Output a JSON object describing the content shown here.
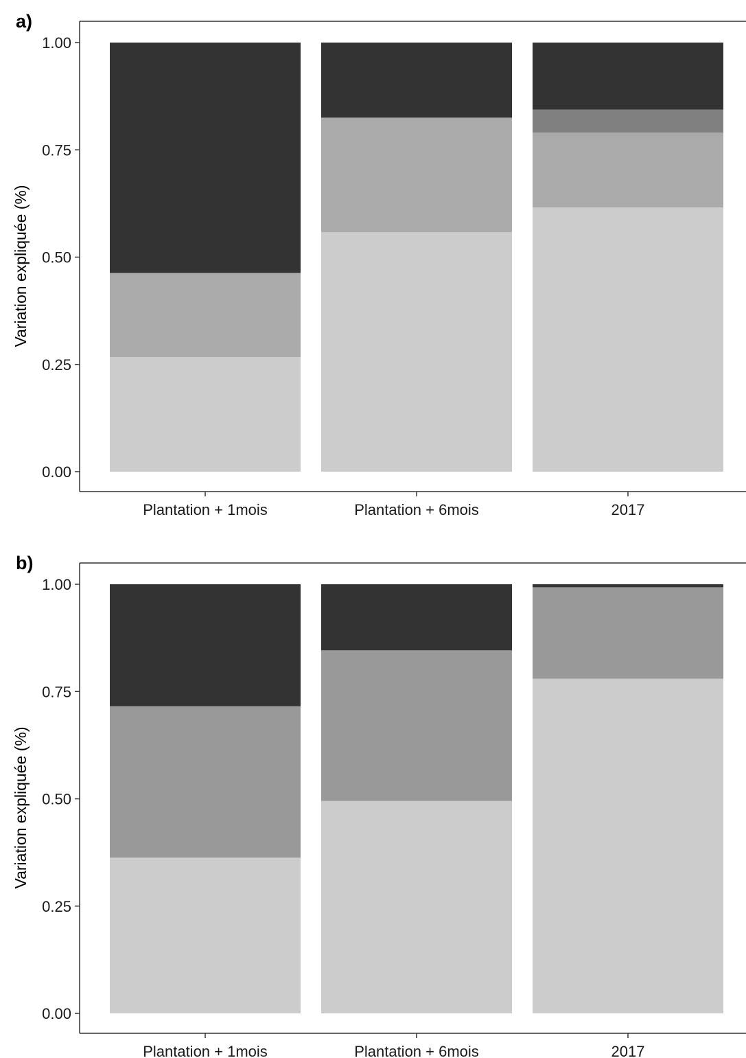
{
  "chart_data": [
    {
      "type": "bar",
      "stacked": true,
      "panel_label": "a)",
      "title": "",
      "xlabel": "",
      "ylabel": "Variation expliquée (%)",
      "ylim": [
        0,
        1
      ],
      "yticks": [
        "0.00",
        "0.25",
        "0.50",
        "0.75",
        "1.00"
      ],
      "grid": false,
      "legend": "none",
      "categories": [
        "Plantation + 1mois",
        "Plantation + 6mois",
        "2017"
      ],
      "segments": [
        {
          "color": "#cccccc",
          "values": [
            0.267,
            0.558,
            0.616
          ]
        },
        {
          "color": "#aaaaaa",
          "values": [
            0.196,
            0.267,
            0.174
          ]
        },
        {
          "color": "#808080",
          "values": [
            0.0,
            0.0,
            0.054
          ]
        },
        {
          "color": "#333333",
          "values": [
            0.537,
            0.175,
            0.156
          ]
        }
      ]
    },
    {
      "type": "bar",
      "stacked": true,
      "panel_label": "b)",
      "title": "",
      "xlabel": "",
      "ylabel": "Variation expliquée (%)",
      "ylim": [
        0,
        1
      ],
      "yticks": [
        "0.00",
        "0.25",
        "0.50",
        "0.75",
        "1.00"
      ],
      "grid": false,
      "legend": "none",
      "categories": [
        "Plantation + 1mois",
        "Plantation + 6mois",
        "2017"
      ],
      "segments": [
        {
          "color": "#cccccc",
          "values": [
            0.363,
            0.495,
            0.78
          ]
        },
        {
          "color": "#999999",
          "values": [
            0.353,
            0.351,
            0.213
          ]
        },
        {
          "color": "#333333",
          "values": [
            0.284,
            0.154,
            0.007
          ]
        }
      ]
    }
  ]
}
